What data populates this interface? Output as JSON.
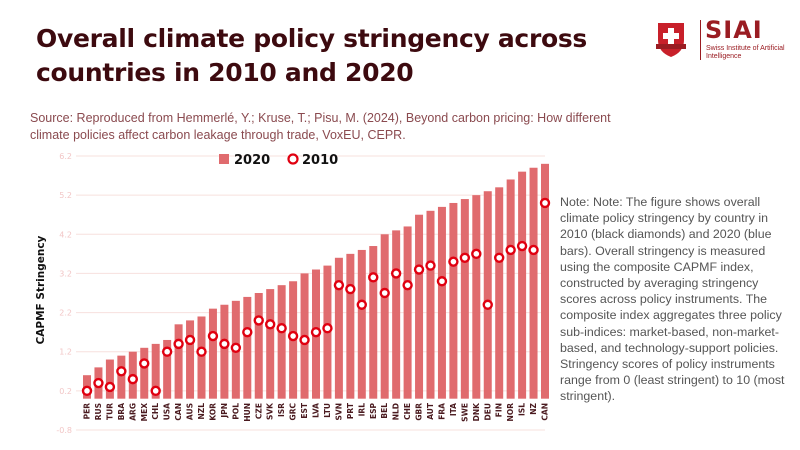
{
  "header": {
    "title": "Overall climate policy stringency across countries in 2010 and 2020",
    "source": "Source: Reproduced from Hemmerlé, Y.; Kruse, T.; Pisu, M. (2024), Beyond carbon pricing: How different climate policies affect carbon leakage through trade, VoxEU, CEPR."
  },
  "logo": {
    "name": "SIAI",
    "subtitle": "Swiss Institute of Artificial Intelligence"
  },
  "note": "Note: Note: The figure shows overall climate policy stringency by country in 2010 (black diamonds) and 2020 (blue bars). Overall stringency is measured using the composite CAPMF index, constructed by averaging stringency scores across policy instruments. The composite index aggregates three policy sub-indices: market-based, non-market-based, and technology-support policies. Stringency scores of policy instruments range from 0 (least stringent) to 10 (most stringent).",
  "colors": {
    "bar": "#e06b6e",
    "marker": "#e00010",
    "grid": "#f7e0de",
    "title": "#3d0a0f"
  },
  "chart_data": {
    "type": "bar",
    "title": "Overall climate policy stringency across countries in 2010 and 2020",
    "xlabel": "",
    "ylabel": "CAPMF Stringency",
    "ylim": [
      -0.8,
      6.2
    ],
    "yticks": [
      "-0.8",
      "0.2",
      "1.2",
      "2.2",
      "3.2",
      "4.2",
      "5.2",
      "6.2"
    ],
    "ytick_values": [
      -0.8,
      0.2,
      1.2,
      2.2,
      3.2,
      4.2,
      5.2,
      6.2
    ],
    "grid": true,
    "legend_position": "top-center",
    "categories": [
      "PER",
      "RUS",
      "TUR",
      "BRA",
      "ARG",
      "MEX",
      "CHL",
      "USA",
      "CAN",
      "AUS",
      "NZL",
      "KOR",
      "JPN",
      "POL",
      "HUN",
      "CZE",
      "SVK",
      "ISR",
      "GRC",
      "EST",
      "LVA",
      "LTU",
      "SVN",
      "PRT",
      "IRL",
      "ESP",
      "BEL",
      "NLD",
      "CHE",
      "GBR",
      "AUT",
      "FRA",
      "ITA",
      "SWE",
      "DNK",
      "DEU",
      "FIN",
      "NOR",
      "ISL",
      "NZ",
      "CAN"
    ],
    "series": [
      {
        "name": "2020",
        "kind": "bar",
        "values": [
          0.6,
          0.8,
          1.0,
          1.1,
          1.2,
          1.3,
          1.4,
          1.5,
          1.9,
          2.0,
          2.1,
          2.3,
          2.4,
          2.5,
          2.6,
          2.7,
          2.8,
          2.9,
          3.0,
          3.2,
          3.3,
          3.4,
          3.6,
          3.7,
          3.8,
          3.9,
          4.2,
          4.3,
          4.4,
          4.7,
          4.8,
          4.9,
          5.0,
          5.1,
          5.2,
          5.3,
          5.4,
          5.6,
          5.8,
          5.9,
          6.0
        ]
      },
      {
        "name": "2010",
        "kind": "marker",
        "values": [
          0.2,
          0.4,
          0.3,
          0.7,
          0.5,
          0.9,
          0.2,
          1.2,
          1.4,
          1.5,
          1.2,
          1.6,
          1.4,
          1.3,
          1.7,
          2.0,
          1.9,
          1.8,
          1.6,
          1.5,
          1.7,
          1.8,
          2.9,
          2.8,
          2.4,
          3.1,
          2.7,
          3.2,
          2.9,
          3.3,
          3.4,
          3.0,
          3.5,
          3.6,
          3.7,
          2.4,
          3.6,
          3.8,
          3.9,
          3.8,
          5.0
        ]
      }
    ]
  }
}
